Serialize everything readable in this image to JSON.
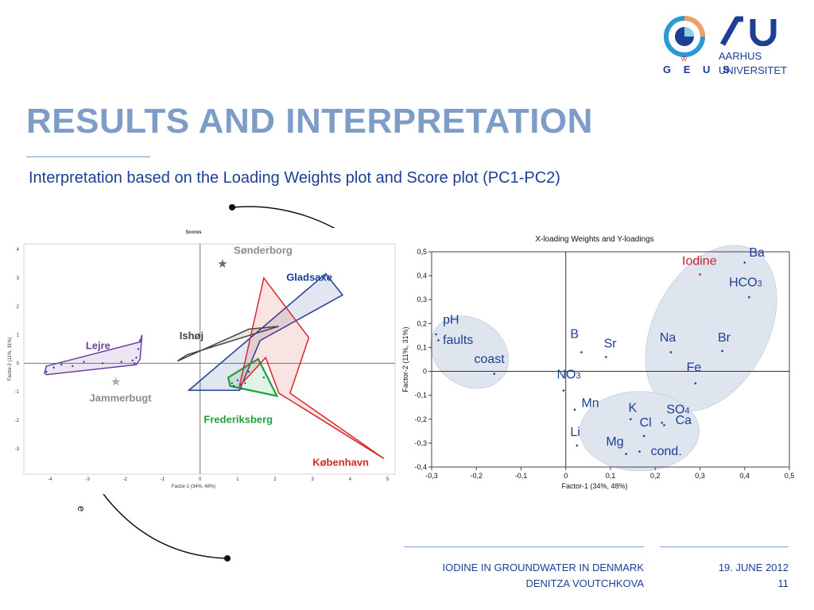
{
  "header": {
    "title": "RESULTS AND INTERPRETATION",
    "subtitle": "Interpretation based on the Loading Weights plot and Score plot (PC1-PC2)",
    "logos": {
      "geus_label": "G E U S",
      "au_name_line1": "AARHUS",
      "au_name_line2": "UNIVERSITET"
    }
  },
  "footer": {
    "topic": "IODINE IN GROUNDWATER IN DENMARK",
    "author": "DENITZA VOUTCHKOVA",
    "date": "19. JUNE 2012",
    "page": "11"
  },
  "edge_fragment": "e",
  "colors": {
    "title": "#7d9cc8",
    "text": "#1c3f94",
    "iodine": "#c4212b",
    "frederiksberg": "#1aa33a",
    "kobenhavn": "#d62828",
    "gladsaxe": "#1c3f94",
    "lejre": "#6b3fa0",
    "gray_label": "#8c8c8c",
    "ishoj": "#444444"
  },
  "chart_data": [
    {
      "type": "scatter",
      "title": "Scores",
      "xlabel": "Factor-1 (34%, 48%)",
      "ylabel": "Factor-2 (11%, 31%)",
      "xlim": [
        -4.7,
        5.2
      ],
      "ylim": [
        -3.9,
        4.2
      ],
      "xticks": [
        -4,
        -3,
        -2,
        -1,
        0,
        1,
        2,
        3,
        4,
        5
      ],
      "yticks": [
        4,
        3,
        2,
        1,
        0,
        -1,
        -2,
        -3
      ],
      "grid": false,
      "stars": [
        {
          "label": "Sønderborg",
          "x": 0.6,
          "y": 3.5,
          "label_x": 0.9,
          "label_y": 3.85,
          "color_key": "gray_label"
        },
        {
          "label": "Jammerbugt",
          "x": -2.25,
          "y": -0.65,
          "label_x": -2.95,
          "label_y": -1.35,
          "color_key": "gray_label"
        }
      ],
      "groups": [
        {
          "name": "Lejre",
          "label_x": -3.05,
          "label_y": 0.5,
          "color_key": "lejre",
          "polygon": [
            [
              -4.15,
              -0.35
            ],
            [
              -4.1,
              -0.1
            ],
            [
              -1.6,
              0.75
            ],
            [
              -1.55,
              1.0
            ],
            [
              -1.6,
              0.15
            ],
            [
              -1.7,
              -0.05
            ],
            [
              -4.1,
              -0.4
            ]
          ],
          "points": [
            [
              -4.1,
              -0.3
            ],
            [
              -3.9,
              -0.15
            ],
            [
              -3.7,
              -0.05
            ],
            [
              -3.4,
              -0.1
            ],
            [
              -3.1,
              0.05
            ],
            [
              -2.6,
              0.0
            ],
            [
              -2.1,
              0.05
            ],
            [
              -1.8,
              0.1
            ],
            [
              -1.7,
              0.2
            ],
            [
              -1.65,
              0.5
            ],
            [
              -1.6,
              0.8
            ],
            [
              -1.75,
              0.0
            ]
          ]
        },
        {
          "name": "Ishøj",
          "label_x": -0.55,
          "label_y": 0.85,
          "color_key": "ishoj",
          "polygon": [
            [
              -0.6,
              0.08
            ],
            [
              -0.35,
              0.3
            ],
            [
              2.1,
              1.3
            ],
            [
              1.3,
              1.2
            ]
          ],
          "points": []
        },
        {
          "name": "Gladsaxe",
          "label_x": 2.3,
          "label_y": 2.9,
          "color_key": "gladsaxe",
          "polygon": [
            [
              -0.3,
              -0.95
            ],
            [
              3.35,
              3.15
            ],
            [
              3.8,
              2.4
            ],
            [
              1.6,
              0.8
            ],
            [
              1.05,
              -0.95
            ]
          ],
          "points": []
        },
        {
          "name": "Frederiksberg",
          "label_x": 0.1,
          "label_y": -2.1,
          "color_key": "frederiksberg",
          "polygon": [
            [
              0.8,
              -0.8
            ],
            [
              0.75,
              -0.5
            ],
            [
              1.55,
              0.15
            ],
            [
              2.05,
              -1.15
            ]
          ],
          "points": [
            [
              0.85,
              -0.7
            ],
            [
              1.0,
              -0.6
            ],
            [
              1.1,
              -0.9
            ],
            [
              1.2,
              -0.7
            ],
            [
              0.9,
              -0.8
            ]
          ]
        },
        {
          "name": "København",
          "label_x": 3.0,
          "label_y": -3.6,
          "color_key": "kobenhavn",
          "polygon": [
            [
              1.7,
              3.0
            ],
            [
              1.05,
              -0.8
            ],
            [
              1.75,
              0.2
            ],
            [
              2.1,
              -1.05
            ],
            [
              4.9,
              -3.35
            ],
            [
              2.4,
              -1.05
            ],
            [
              2.9,
              0.9
            ]
          ],
          "points": [
            [
              1.7,
              -0.5
            ],
            [
              1.3,
              -0.3
            ]
          ]
        }
      ]
    },
    {
      "type": "scatter",
      "title": "X-loading Weights and Y-loadings",
      "xlabel": "Factor-1 (34%, 48%)",
      "ylabel": "Factor-2 (11%, 31%)",
      "xlim": [
        -0.3,
        0.5
      ],
      "ylim": [
        -0.4,
        0.5
      ],
      "xticks": [
        "-0,3",
        "-0,2",
        "-0,1",
        "0",
        "0,1",
        "0,2",
        "0,3",
        "0,4",
        "0,5"
      ],
      "yticks": [
        "0,5",
        "0,4",
        "0,3",
        "0,2",
        "0,1",
        "0",
        "-0,1",
        "-0,2",
        "-0,3",
        "-0,4"
      ],
      "grid": false,
      "points": [
        {
          "label": "pH",
          "x": -0.29,
          "y": 0.155,
          "label_x": -0.275,
          "label_y": 0.2
        },
        {
          "label": "faults",
          "x": -0.285,
          "y": 0.13,
          "label_x": -0.275,
          "label_y": 0.115
        },
        {
          "label": "coast",
          "x": -0.16,
          "y": -0.01,
          "label_x": -0.205,
          "label_y": 0.035
        },
        {
          "label": "B",
          "x": 0.035,
          "y": 0.08,
          "label_x": 0.01,
          "label_y": 0.14
        },
        {
          "label": "Sr",
          "x": 0.09,
          "y": 0.06,
          "label_x": 0.085,
          "label_y": 0.1
        },
        {
          "label": "NO",
          "sub": "3",
          "x": -0.005,
          "y": -0.08,
          "label_x": -0.02,
          "label_y": -0.03
        },
        {
          "label": "Mn",
          "x": 0.02,
          "y": -0.16,
          "label_x": 0.035,
          "label_y": -0.15
        },
        {
          "label": "Li",
          "x": 0.025,
          "y": -0.31,
          "label_x": 0.01,
          "label_y": -0.27
        },
        {
          "label": "K",
          "x": 0.145,
          "y": -0.2,
          "label_x": 0.14,
          "label_y": -0.17
        },
        {
          "label": "SO",
          "sub": "4",
          "x": 0.215,
          "y": -0.215,
          "label_x": 0.225,
          "label_y": -0.175
        },
        {
          "label": "Cl",
          "x": 0.175,
          "y": -0.27,
          "label_x": 0.165,
          "label_y": -0.23
        },
        {
          "label": "Ca",
          "x": 0.22,
          "y": -0.225,
          "label_x": 0.245,
          "label_y": -0.22
        },
        {
          "label": "Mg",
          "x": 0.135,
          "y": -0.345,
          "label_x": 0.09,
          "label_y": -0.31
        },
        {
          "label": "cond.",
          "x": 0.165,
          "y": -0.335,
          "label_x": 0.19,
          "label_y": -0.35
        },
        {
          "label": "Iodine",
          "x": 0.3,
          "y": 0.405,
          "label_x": 0.26,
          "label_y": 0.445,
          "color_key": "iodine"
        },
        {
          "label": "Ba",
          "x": 0.4,
          "y": 0.455,
          "label_x": 0.41,
          "label_y": 0.48
        },
        {
          "label": "HCO",
          "sub": "3",
          "x": 0.41,
          "y": 0.31,
          "label_x": 0.365,
          "label_y": 0.355
        },
        {
          "label": "Na",
          "x": 0.235,
          "y": 0.08,
          "label_x": 0.21,
          "label_y": 0.125
        },
        {
          "label": "Br",
          "x": 0.35,
          "y": 0.085,
          "label_x": 0.34,
          "label_y": 0.125
        },
        {
          "label": "Fe",
          "x": 0.29,
          "y": -0.05,
          "label_x": 0.27,
          "label_y": -0.0
        }
      ]
    }
  ]
}
